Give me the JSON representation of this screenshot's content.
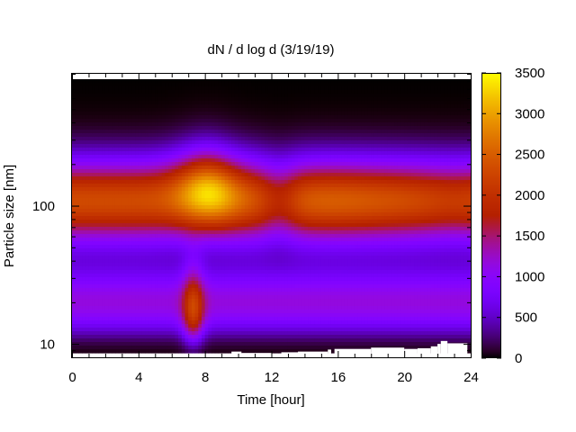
{
  "chart_data": {
    "type": "heatmap",
    "title": "dN / d log d (3/19/19)",
    "xlabel": "Time [hour]",
    "ylabel": "Particle size [nm]",
    "xlim": [
      0,
      24
    ],
    "ylim": [
      8,
      900
    ],
    "y_scale": "log",
    "x_ticks": [
      0,
      4,
      8,
      12,
      16,
      20,
      24
    ],
    "x_tick_labels": [
      "0",
      "4",
      "8",
      "12",
      "16",
      "20",
      "24"
    ],
    "y_ticks": [
      10,
      100
    ],
    "y_tick_labels": [
      "10",
      "100"
    ],
    "colorbar": {
      "min": 0,
      "max": 3500,
      "ticks": [
        0,
        500,
        1000,
        1500,
        2000,
        2500,
        3000,
        3500
      ],
      "tick_labels": [
        "0",
        "500",
        "1000",
        "1500",
        "2000",
        "2500",
        "3000",
        "3500"
      ],
      "palette": "gnuplot"
    },
    "grid": false,
    "data_summary": {
      "peak_value": 3500,
      "peak_time_hour": 8,
      "peak_size_nm": 120,
      "mode_size_nm": 110,
      "dip_time_hour": 12.5,
      "nucleation_event_time_hour": 7.3
    }
  }
}
